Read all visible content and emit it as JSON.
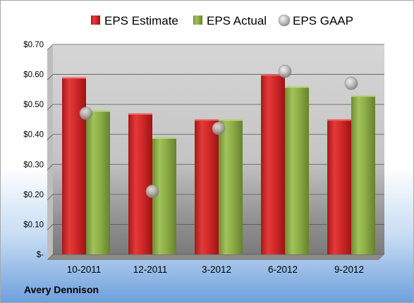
{
  "chart_data": {
    "type": "bar",
    "title": "",
    "xlabel": "",
    "ylabel": "",
    "categories": [
      "10-2011",
      "12-2011",
      "3-2012",
      "6-2012",
      "9-2012"
    ],
    "series": [
      {
        "name": "EPS Estimate",
        "kind": "bar",
        "color": "#d42a2a",
        "values": [
          0.59,
          0.47,
          0.45,
          0.6,
          0.45
        ]
      },
      {
        "name": "EPS Actual",
        "kind": "bar",
        "color": "#8fb04a",
        "values": [
          0.48,
          0.39,
          0.45,
          0.56,
          0.53
        ]
      },
      {
        "name": "EPS GAAP",
        "kind": "scatter",
        "color": "#b8b8b8",
        "values": [
          0.47,
          0.21,
          0.42,
          0.61,
          0.57
        ]
      }
    ],
    "ylim": [
      0,
      0.7
    ],
    "yticks": [
      0,
      0.1,
      0.2,
      0.3,
      0.4,
      0.5,
      0.6,
      0.7
    ],
    "ytick_labels": [
      "$-",
      "$0.10",
      "$0.20",
      "$0.30",
      "$0.40",
      "$0.50",
      "$0.60",
      "$0.70"
    ],
    "grid": true,
    "legend_position": "top"
  },
  "footer": {
    "company": "Avery Dennison"
  }
}
